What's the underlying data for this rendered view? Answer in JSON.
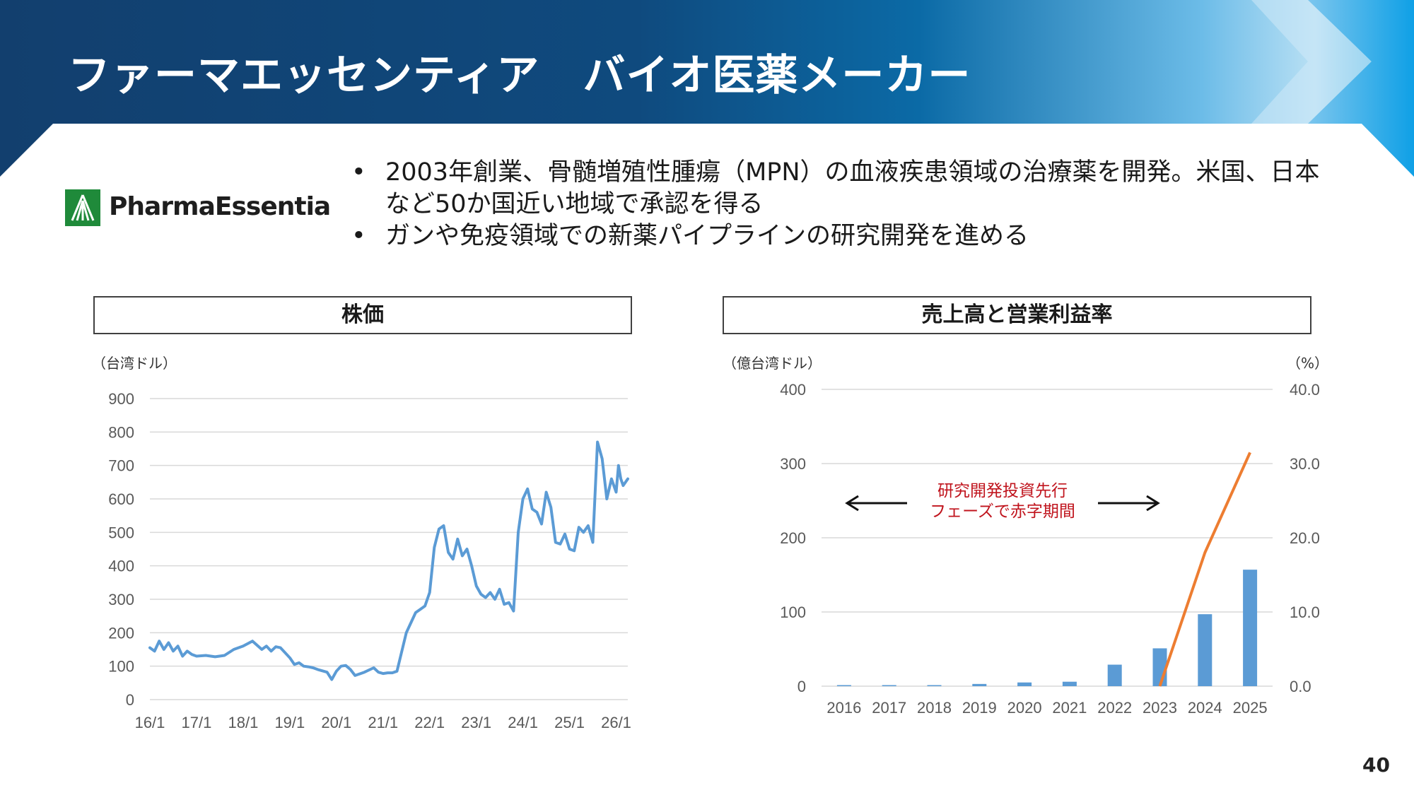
{
  "slide": {
    "title": "ファーマエッセンティア　バイオ医薬メーカー",
    "logo_text": "PharmaEssentia",
    "bullets": [
      "2003年創業、骨髄増殖性腫瘍（MPN）の血液疾患領域の治療薬を開発。米国、日本など50か国近い地域で承認を得る",
      "ガンや免疫領域での新薬パイプラインの研究開発を進める"
    ],
    "page_number": "40",
    "colors": {
      "header_dark": "#123f6e",
      "header_light": "#1aa3e0",
      "line_blue": "#5b9bd5",
      "bar_blue": "#5b9bd5",
      "margin_orange": "#ed7d31",
      "annotation_red": "#c0141d"
    }
  },
  "stock_panel": {
    "title": "株価",
    "unit": "（台湾ドル）"
  },
  "sales_panel": {
    "title": "売上高と営業利益率",
    "unit_left": "（億台湾ドル）",
    "unit_right": "（%）",
    "annotation_line1": "研究開発投資先行",
    "annotation_line2": "フェーズで赤字期間"
  },
  "chart_data": [
    {
      "type": "line",
      "title": "株価",
      "ylabel": "（台湾ドル）",
      "ylim": [
        0,
        900
      ],
      "yticks": [
        "0",
        "100",
        "200",
        "300",
        "400",
        "500",
        "600",
        "700",
        "800",
        "900"
      ],
      "xticks": [
        "16/1",
        "17/1",
        "18/1",
        "19/1",
        "20/1",
        "21/1",
        "22/1",
        "23/1",
        "24/1",
        "25/1",
        "26/1"
      ],
      "grid": true,
      "series": [
        {
          "color": "#5b9bd5",
          "x": [
            2016.0,
            2016.1,
            2016.2,
            2016.3,
            2016.4,
            2016.5,
            2016.6,
            2016.7,
            2016.8,
            2016.9,
            2017.0,
            2017.2,
            2017.4,
            2017.6,
            2017.8,
            2018.0,
            2018.2,
            2018.4,
            2018.5,
            2018.6,
            2018.7,
            2018.8,
            2018.9,
            2019.0,
            2019.1,
            2019.2,
            2019.3,
            2019.4,
            2019.5,
            2019.6,
            2019.8,
            2019.9,
            2020.0,
            2020.1,
            2020.2,
            2020.3,
            2020.4,
            2020.6,
            2020.8,
            2020.9,
            2021.0,
            2021.1,
            2021.2,
            2021.3,
            2021.5,
            2021.7,
            2021.8,
            2021.9,
            2022.0,
            2022.1,
            2022.2,
            2022.3,
            2022.4,
            2022.5,
            2022.6,
            2022.7,
            2022.8,
            2022.9,
            2023.0,
            2023.1,
            2023.2,
            2023.3,
            2023.4,
            2023.5,
            2023.6,
            2023.7,
            2023.8,
            2023.9,
            2024.0,
            2024.1,
            2024.2,
            2024.3,
            2024.4,
            2024.5,
            2024.6,
            2024.7,
            2024.8,
            2024.9,
            2025.0,
            2025.1,
            2025.2,
            2025.3,
            2025.4,
            2025.5,
            2025.6,
            2025.7,
            2025.8,
            2025.9,
            2026.0,
            2026.05,
            2026.1,
            2026.15,
            2026.25
          ],
          "y": [
            155,
            145,
            175,
            150,
            170,
            145,
            160,
            130,
            145,
            135,
            130,
            132,
            128,
            132,
            150,
            160,
            175,
            150,
            160,
            145,
            158,
            155,
            140,
            125,
            105,
            110,
            100,
            98,
            95,
            90,
            82,
            60,
            85,
            100,
            102,
            90,
            72,
            82,
            95,
            82,
            78,
            80,
            80,
            85,
            200,
            260,
            270,
            280,
            320,
            455,
            510,
            520,
            440,
            420,
            480,
            430,
            450,
            400,
            340,
            315,
            305,
            320,
            300,
            330,
            285,
            290,
            265,
            500,
            600,
            630,
            570,
            560,
            525,
            620,
            575,
            470,
            465,
            495,
            450,
            445,
            515,
            500,
            520,
            470,
            770,
            720,
            600,
            660,
            620,
            700,
            660,
            640,
            660
          ],
          "note": "estimated from chart"
        }
      ]
    },
    {
      "type": "bar",
      "title": "売上高と営業利益率",
      "categories": [
        "2016",
        "2017",
        "2018",
        "2019",
        "2020",
        "2021",
        "2022",
        "2023",
        "2024",
        "2025"
      ],
      "ylabel_left": "（億台湾ドル）",
      "ylim_left": [
        0,
        400
      ],
      "yticks_left": [
        "0",
        "100",
        "200",
        "300",
        "400"
      ],
      "ylabel_right": "（%）",
      "ylim_right": [
        0,
        40
      ],
      "yticks_right": [
        "0.0",
        "10.0",
        "20.0",
        "30.0",
        "40.0"
      ],
      "grid": true,
      "series": [
        {
          "type": "bar",
          "axis": "left",
          "color": "#5b9bd5",
          "values": [
            0.5,
            0.5,
            1,
            3,
            5,
            6,
            29,
            51,
            97,
            157
          ]
        },
        {
          "type": "line",
          "axis": "right",
          "color": "#ed7d31",
          "values": [
            null,
            null,
            null,
            null,
            null,
            null,
            null,
            -3,
            18,
            31.5
          ]
        }
      ]
    }
  ]
}
